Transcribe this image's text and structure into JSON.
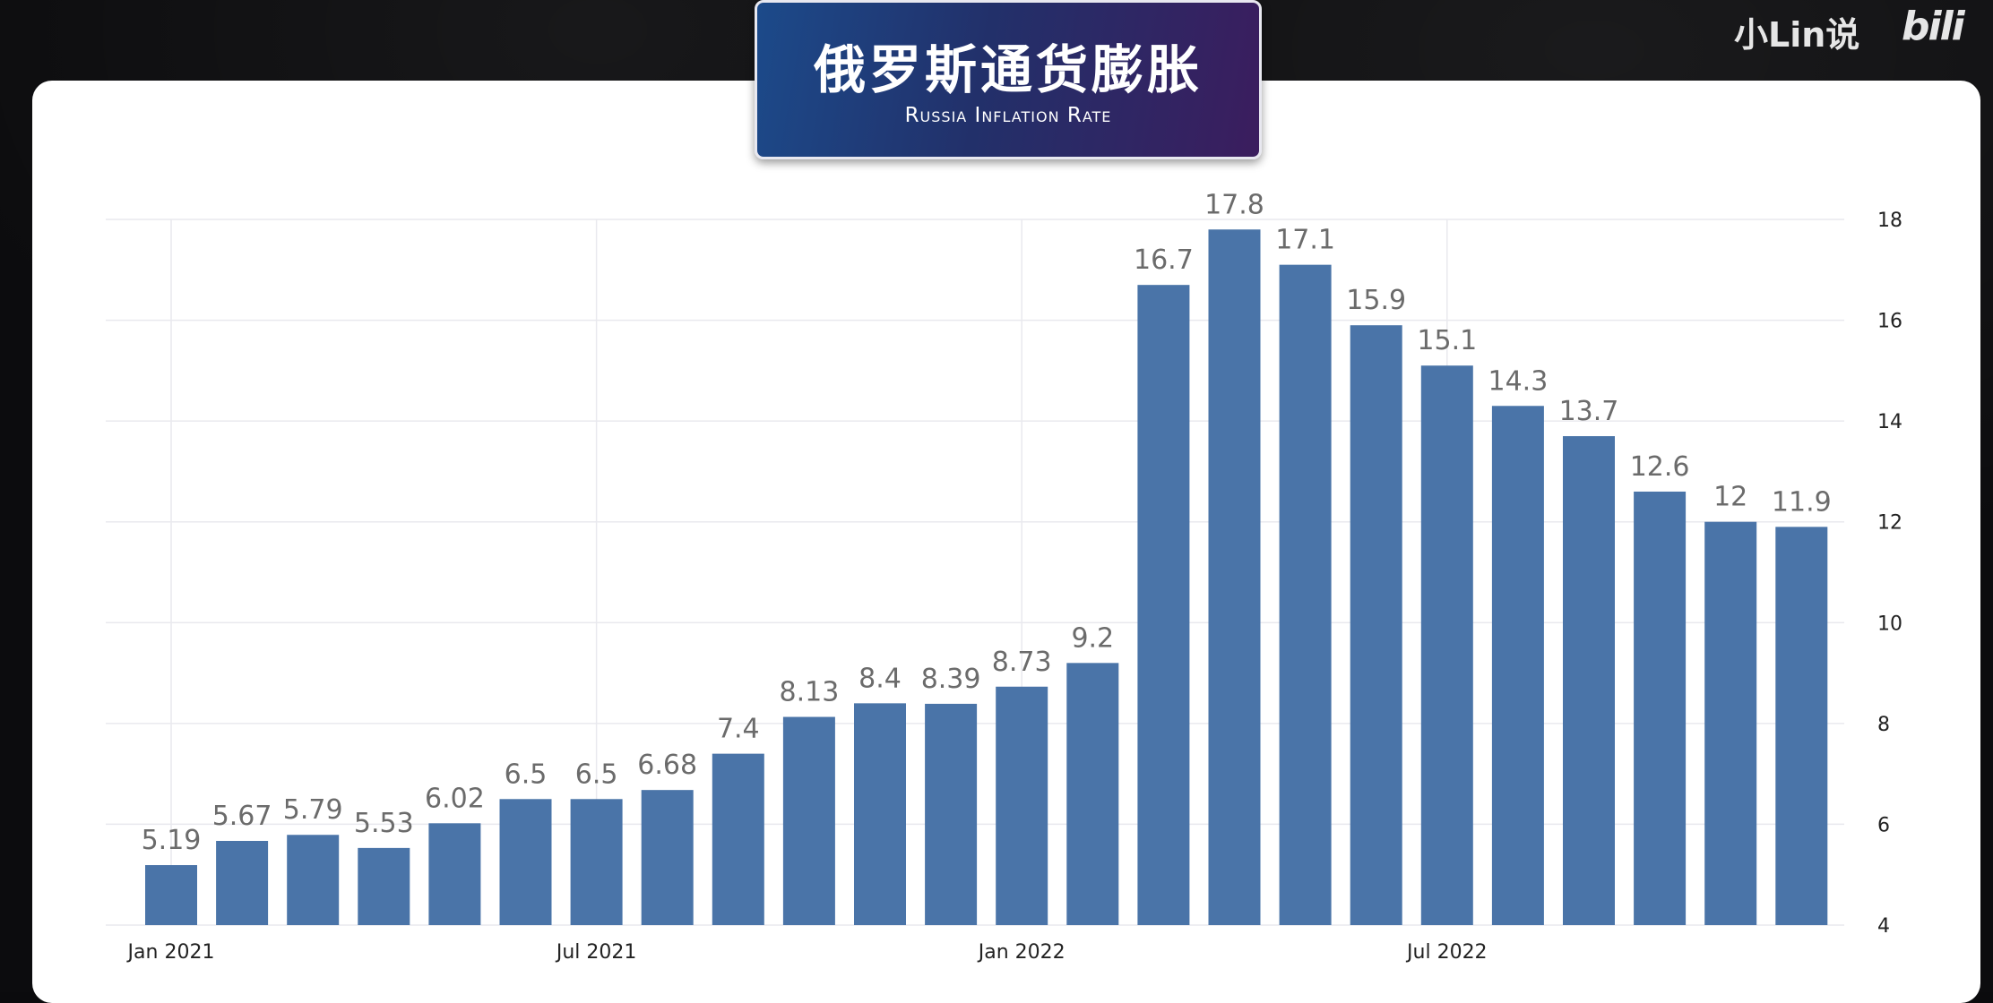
{
  "header": {
    "title_cn": "俄罗斯通货膨胀",
    "title_en": "Russia Inflation Rate"
  },
  "watermark": {
    "text": "小Lin说",
    "logo": "bili"
  },
  "colors": {
    "bar": "#4a74a8",
    "grid": "#e9e9ee",
    "panel": "#ffffff"
  },
  "chart_data": {
    "type": "bar",
    "title": "Russia Inflation Rate",
    "categories": [
      "2021-01",
      "2021-02",
      "2021-03",
      "2021-04",
      "2021-05",
      "2021-06",
      "2021-07",
      "2021-08",
      "2021-09",
      "2021-10",
      "2021-11",
      "2021-12",
      "2022-01",
      "2022-02",
      "2022-03",
      "2022-04",
      "2022-05",
      "2022-06",
      "2022-07",
      "2022-08",
      "2022-09",
      "2022-10",
      "2022-11",
      "2022-12"
    ],
    "values": [
      5.19,
      5.67,
      5.79,
      5.53,
      6.02,
      6.5,
      6.5,
      6.68,
      7.4,
      8.13,
      8.4,
      8.39,
      8.73,
      9.2,
      16.7,
      17.8,
      17.1,
      15.9,
      15.1,
      14.3,
      13.7,
      12.6,
      12,
      11.9
    ],
    "value_labels": [
      "5.19",
      "5.67",
      "5.79",
      "5.53",
      "6.02",
      "6.5",
      "6.5",
      "6.68",
      "7.4",
      "8.13",
      "8.4",
      "8.39",
      "8.73",
      "9.2",
      "16.7",
      "17.8",
      "17.1",
      "15.9",
      "15.1",
      "14.3",
      "13.7",
      "12.6",
      "12",
      "11.9"
    ],
    "x_ticks": [
      {
        "index": 0,
        "label": "Jan 2021"
      },
      {
        "index": 6,
        "label": "Jul 2021"
      },
      {
        "index": 12,
        "label": "Jan 2022"
      },
      {
        "index": 18,
        "label": "Jul 2022"
      }
    ],
    "y_ticks": [
      4,
      6,
      8,
      10,
      12,
      14,
      16,
      18
    ],
    "ylim": [
      4,
      18
    ],
    "y_axis_side": "right",
    "grid": true,
    "xlabel": "",
    "ylabel": ""
  }
}
